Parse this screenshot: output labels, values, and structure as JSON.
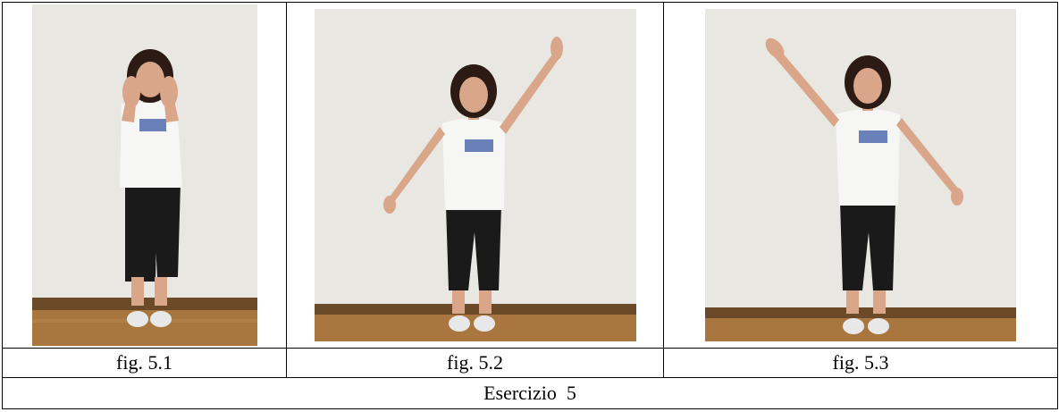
{
  "figures": [
    {
      "caption": "fig. 5.1",
      "pose": "hands-forward"
    },
    {
      "caption": "fig. 5.2",
      "pose": "right-arm-up"
    },
    {
      "caption": "fig. 5.3",
      "pose": "left-arm-up"
    }
  ],
  "title": "Esercizio  5",
  "colors": {
    "wall": "#e6e4df",
    "floor": "#a8763e",
    "baseboard": "#6b4a2a",
    "shirt": "#f6f6f4",
    "pants": "#1a1a1a",
    "skin": "#d9a68a",
    "hair": "#2b1b14",
    "shoe": "#e8e8e8",
    "shirt_logo": "#2f4fa0"
  }
}
